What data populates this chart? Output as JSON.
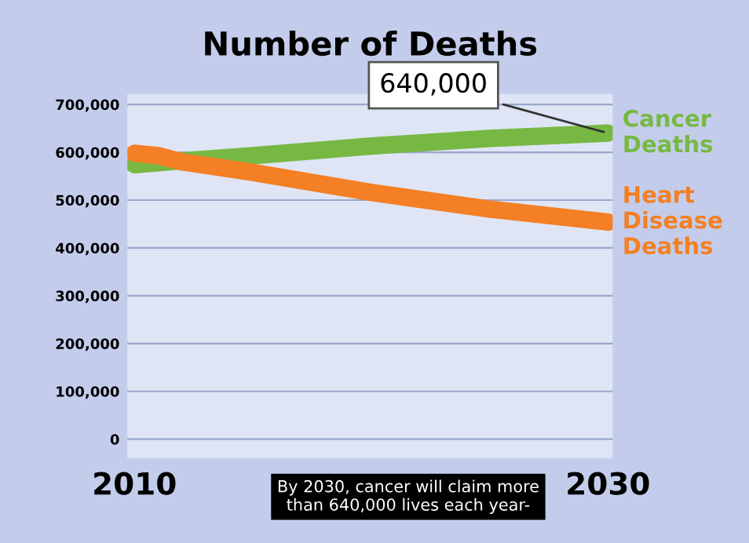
{
  "chart_data": {
    "type": "line",
    "title": "Number of Deaths",
    "x": [
      2010,
      2011,
      2012,
      2015,
      2020,
      2025,
      2030
    ],
    "series": [
      {
        "name": "Cancer\nDeaths",
        "color": "#77b843",
        "values": [
          574000,
          578000,
          582000,
          593000,
          613000,
          629000,
          640000
        ]
      },
      {
        "name": "Heart\nDisease\nDeaths",
        "color": "#f47f24",
        "values": [
          598000,
          593000,
          580000,
          558000,
          516000,
          481000,
          454000
        ]
      }
    ],
    "xlim": [
      2009.7,
      2030.2
    ],
    "xticks": [
      2010,
      2030
    ],
    "ylim": [
      -40000,
      722000
    ],
    "yticks": [
      0,
      {
        "value": 100000,
        "label": "100,000"
      },
      {
        "value": 200000,
        "label": "200,000"
      },
      {
        "value": 300000,
        "label": "300,000"
      },
      {
        "value": 400000,
        "label": "400,000"
      },
      {
        "value": 500000,
        "label": "500,000"
      },
      {
        "value": 600000,
        "label": "600,000"
      },
      {
        "value": 700000,
        "label": "700,000"
      }
    ],
    "grid": "y",
    "legend": false,
    "annotations": [
      {
        "text": "640,000",
        "x": 2030,
        "y": 640000
      },
      "By 2030, cancer will claim more\nthan 640,000 lives each year-"
    ]
  }
}
